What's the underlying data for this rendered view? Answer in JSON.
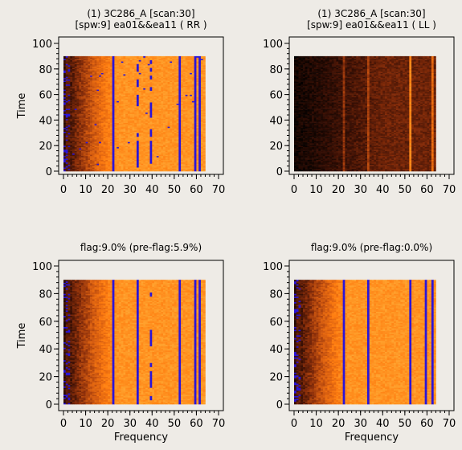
{
  "colors": {
    "background": "#eeebe6",
    "flag": "#2a14d8",
    "colormap": [
      "#000000",
      "#3a1005",
      "#8a2e0a",
      "#d25a10",
      "#ff7d10",
      "#ff9e2a",
      "#ffc055"
    ]
  },
  "chart_data": [
    {
      "type": "heatmap",
      "title": "(1) 3C286_A  [scan:30]",
      "subtitle": "[spw:9] ea01&&ea11  ( RR )",
      "xlabel": "",
      "ylabel": "Time",
      "xlim": [
        0,
        70
      ],
      "ylim": [
        0,
        100
      ],
      "x_ticks": [
        "0",
        "10",
        "20",
        "30",
        "40",
        "50",
        "60",
        "70"
      ],
      "y_ticks": [
        "0",
        "20",
        "40",
        "60",
        "80",
        "100"
      ],
      "n_channels": 64,
      "n_times": 90,
      "flagged_channels": [
        22,
        52,
        59,
        61
      ],
      "partially_flagged_channels": [
        33,
        39
      ],
      "brightness": "low in channels 0-10, high from 25 onward",
      "grid": false
    },
    {
      "type": "heatmap",
      "title": "(1) 3C286_A  [scan:30]",
      "subtitle": "[spw:9] ea01&&ea11  ( LL )",
      "xlabel": "",
      "ylabel": "",
      "xlim": [
        0,
        70
      ],
      "ylim": [
        0,
        100
      ],
      "x_ticks": [
        "0",
        "10",
        "20",
        "30",
        "40",
        "50",
        "60",
        "70"
      ],
      "y_ticks": [
        "0",
        "20",
        "40",
        "60",
        "80",
        "100"
      ],
      "n_channels": 64,
      "n_times": 90,
      "flagged_channels": [],
      "partially_flagged_channels": [],
      "brightness": "dark overall, brighter lines at channels 22, 33, 52, 62",
      "grid": false
    },
    {
      "type": "heatmap",
      "title": "flag:9.0% (pre-flag:5.9%)",
      "subtitle": "",
      "xlabel": "Frequency",
      "ylabel": "Time",
      "xlim": [
        0,
        70
      ],
      "ylim": [
        0,
        100
      ],
      "x_ticks": [
        "0",
        "10",
        "20",
        "30",
        "40",
        "50",
        "60",
        "70"
      ],
      "y_ticks": [
        "0",
        "20",
        "40",
        "60",
        "80",
        "100"
      ],
      "n_channels": 64,
      "n_times": 90,
      "flagged_channels": [
        22,
        33,
        52,
        59,
        61
      ],
      "partially_flagged_channels": [
        39
      ],
      "brightness": "low in channels 0-10, high from 25 onward",
      "grid": false
    },
    {
      "type": "heatmap",
      "title": "flag:9.0% (pre-flag:0.0%)",
      "subtitle": "",
      "xlabel": "Frequency",
      "ylabel": "",
      "xlim": [
        0,
        70
      ],
      "ylim": [
        0,
        100
      ],
      "x_ticks": [
        "0",
        "10",
        "20",
        "30",
        "40",
        "50",
        "60",
        "70"
      ],
      "y_ticks": [
        "0",
        "20",
        "40",
        "60",
        "80",
        "100"
      ],
      "n_channels": 64,
      "n_times": 90,
      "flagged_channels": [
        22,
        33,
        52,
        59,
        62
      ],
      "partially_flagged_channels": [],
      "brightness": "low in channels 0-10, high from 25 onward",
      "grid": false
    }
  ]
}
